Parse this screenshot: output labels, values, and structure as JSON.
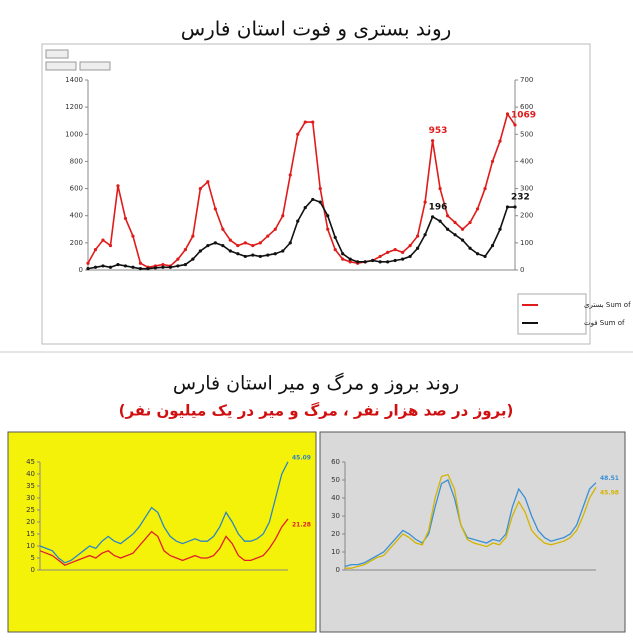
{
  "chart_data": [
    {
      "type": "line",
      "title": "روند بستری و فوت استان فارس",
      "ylim": [
        0,
        1400
      ],
      "yticks": [
        0,
        200,
        400,
        600,
        800,
        1000,
        1200,
        1400
      ],
      "y2lim": [
        0,
        700
      ],
      "y2ticks": [
        0,
        100,
        200,
        300,
        400,
        500,
        600,
        700
      ],
      "legend": "right",
      "background": "#ffffff",
      "series": [
        {
          "name": "Sum of بستری",
          "color": "#e01b1b",
          "values": [
            50,
            150,
            220,
            180,
            620,
            380,
            250,
            50,
            20,
            30,
            40,
            30,
            80,
            150,
            250,
            600,
            650,
            450,
            300,
            220,
            180,
            200,
            180,
            200,
            250,
            300,
            400,
            700,
            1000,
            1090,
            1090,
            600,
            300,
            150,
            80,
            60,
            50,
            60,
            70,
            100,
            130,
            150,
            130,
            180,
            250,
            500,
            953,
            600,
            400,
            350,
            300,
            350,
            450,
            600,
            800,
            950,
            1150,
            1069
          ]
        },
        {
          "name": "Sum of فوت",
          "color": "#111111",
          "axis": "y2",
          "values": [
            5,
            10,
            15,
            10,
            20,
            15,
            10,
            5,
            5,
            8,
            10,
            10,
            15,
            20,
            40,
            70,
            90,
            100,
            90,
            70,
            60,
            50,
            55,
            50,
            55,
            60,
            70,
            100,
            180,
            230,
            260,
            250,
            200,
            120,
            60,
            40,
            30,
            30,
            35,
            30,
            30,
            35,
            40,
            50,
            80,
            130,
            196,
            180,
            150,
            130,
            110,
            80,
            60,
            50,
            90,
            150,
            232,
            232
          ]
        }
      ]
    },
    {
      "type": "line",
      "title": "روند بروز و مرگ و میر استان فارس",
      "subtitle": "(بروز در صد هزار نفر ، مرگ و میر در یک میلیون نفر)",
      "ylim": [
        0,
        45
      ],
      "yticks": [
        0,
        5,
        10,
        15,
        20,
        25,
        30,
        35,
        40,
        45
      ],
      "background": "#f5f20a",
      "series": [
        {
          "color": "#2e86c1",
          "values": [
            10,
            9,
            8,
            5,
            3,
            4,
            6,
            8,
            10,
            9,
            12,
            14,
            12,
            11,
            13,
            15,
            18,
            22,
            26,
            24,
            18,
            14,
            12,
            11,
            12,
            13,
            12,
            12,
            14,
            18,
            24,
            20,
            15,
            12,
            12,
            13,
            15,
            20,
            30,
            40,
            45.09
          ]
        },
        {
          "color": "#e0202a",
          "values": [
            8,
            7,
            6,
            4,
            2,
            3,
            4,
            5,
            6,
            5,
            7,
            8,
            6,
            5,
            6,
            7,
            10,
            13,
            16,
            14,
            8,
            6,
            5,
            4,
            5,
            6,
            5,
            5,
            6,
            9,
            14,
            11,
            6,
            4,
            4,
            5,
            6,
            9,
            13,
            18,
            21.28
          ]
        }
      ]
    },
    {
      "type": "line",
      "ylim": [
        0,
        60
      ],
      "yticks": [
        0,
        10,
        20,
        30,
        40,
        50,
        60
      ],
      "background": "#d9d9d9",
      "series": [
        {
          "color": "#3b8fd4",
          "values": [
            2,
            3,
            3,
            4,
            6,
            8,
            10,
            14,
            18,
            22,
            20,
            17,
            15,
            20,
            35,
            48,
            50,
            40,
            25,
            18,
            17,
            16,
            15,
            17,
            16,
            20,
            35,
            45,
            40,
            30,
            22,
            18,
            16,
            17,
            18,
            20,
            25,
            35,
            45,
            48.51
          ]
        },
        {
          "color": "#d4b400",
          "values": [
            1,
            1,
            2,
            3,
            5,
            7,
            8,
            12,
            16,
            20,
            18,
            15,
            14,
            22,
            40,
            52,
            53,
            45,
            25,
            17,
            15,
            14,
            13,
            15,
            14,
            18,
            30,
            38,
            32,
            22,
            18,
            15,
            14,
            15,
            16,
            18,
            22,
            30,
            40,
            45.98
          ]
        }
      ]
    }
  ]
}
